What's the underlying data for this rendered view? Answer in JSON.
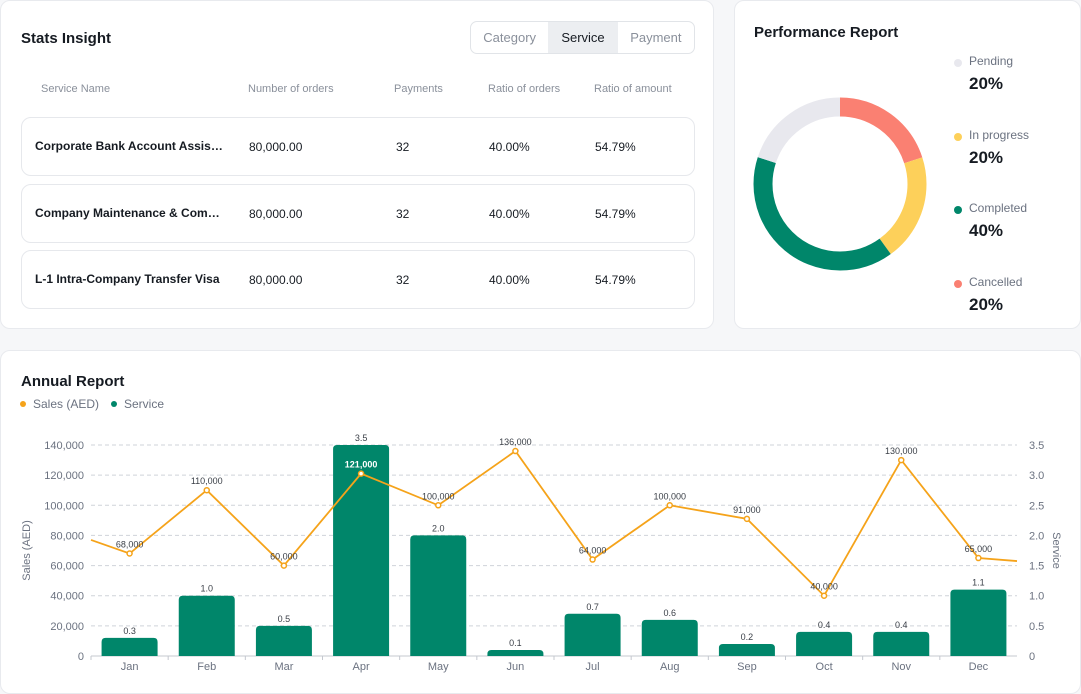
{
  "stats": {
    "title": "Stats Insight",
    "tabs": [
      {
        "label": "Category",
        "active": false
      },
      {
        "label": "Service",
        "active": true
      },
      {
        "label": "Payment",
        "active": false
      }
    ],
    "columns": [
      "Service Name",
      "Number of orders",
      "Payments",
      "Ratio of orders",
      "Ratio of amount"
    ],
    "rows": [
      {
        "name": "Corporate Bank Account Assistance",
        "orders": "80,000.00",
        "payments": "32",
        "ratio_orders": "40.00%",
        "ratio_amount": "54.79%"
      },
      {
        "name": "Company Maintenance & Compliance",
        "orders": "80,000.00",
        "payments": "32",
        "ratio_orders": "40.00%",
        "ratio_amount": "54.79%"
      },
      {
        "name": "L-1 Intra-Company Transfer Visa",
        "orders": "80,000.00",
        "payments": "32",
        "ratio_orders": "40.00%",
        "ratio_amount": "54.79%"
      }
    ]
  },
  "performance": {
    "title": "Performance Report",
    "items": [
      {
        "label": "Pending",
        "value": "20%",
        "share": 20,
        "color": "#e8e8ee"
      },
      {
        "label": "In progress",
        "value": "20%",
        "share": 20,
        "color": "#fdd05a"
      },
      {
        "label": "Completed",
        "value": "40%",
        "share": 40,
        "color": "#00866a"
      },
      {
        "label": "Cancelled",
        "value": "20%",
        "share": 20,
        "color": "#fa8072"
      }
    ]
  },
  "annual": {
    "title": "Annual Report",
    "legend": [
      {
        "label": "Sales (AED)",
        "color": "#f5a31a"
      },
      {
        "label": "Service",
        "color": "#00866a"
      }
    ]
  },
  "chart_data": {
    "type": "bar",
    "title": "Annual Report",
    "categories": [
      "Jan",
      "Feb",
      "Mar",
      "Apr",
      "May",
      "Jun",
      "Jul",
      "Aug",
      "Sep",
      "Oct",
      "Nov",
      "Dec"
    ],
    "series": [
      {
        "name": "Service",
        "type": "bar",
        "axis": "right",
        "color": "#00866a",
        "values": [
          0.3,
          1.0,
          0.5,
          3.5,
          2.0,
          0.1,
          0.7,
          0.6,
          0.2,
          0.4,
          0.4,
          1.1
        ],
        "labels": [
          "0.3",
          "1.0",
          "0.5",
          "3.5",
          "2.0",
          "0.1",
          "0.7",
          "0.6",
          "0.2",
          "0.4",
          "0.4",
          "1.1"
        ]
      },
      {
        "name": "Sales (AED)",
        "type": "line",
        "axis": "left",
        "color": "#f5a31a",
        "values": [
          68000,
          110000,
          60000,
          121000,
          100000,
          136000,
          64000,
          100000,
          91000,
          40000,
          130000,
          65000
        ],
        "labels": [
          "68,000",
          "110,000",
          "60,000",
          "121,000",
          "100,000",
          "136,000",
          "64,000",
          "100,000",
          "91,000",
          "40,000",
          "130,000",
          "65,000"
        ],
        "edge_start": 77000,
        "edge_end": 63000
      }
    ],
    "ylabel": "Sales (AED)",
    "y2label": "Service",
    "ylim": [
      0,
      140000
    ],
    "y2lim": [
      0,
      3.5
    ],
    "yticks": [
      "0",
      "20,000",
      "40,000",
      "60,000",
      "80,000",
      "100,000",
      "120,000",
      "140,000"
    ],
    "y2ticks": [
      "0",
      "0.5",
      "1.0",
      "1.5",
      "2.0",
      "2.5",
      "3.0",
      "3.5"
    ],
    "grid": true
  }
}
